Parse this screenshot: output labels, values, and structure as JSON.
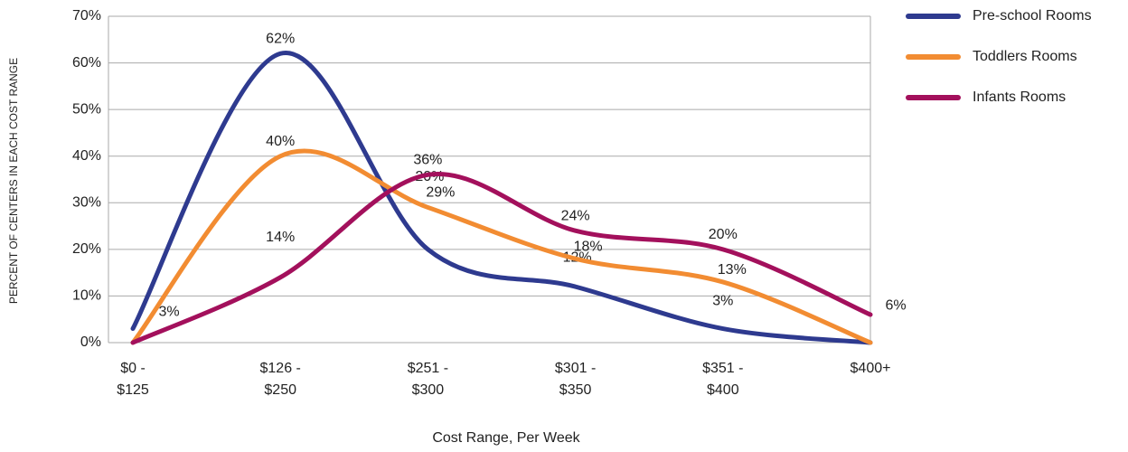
{
  "chart_data": {
    "type": "line",
    "x_label": "Cost Range, Per Week",
    "y_label": "PERCENT OF CENTERS IN EACH COST RANGE",
    "categories": [
      "$0 - $125",
      "$126 - $250",
      "$251 - $300",
      "$301 - $350",
      "$351 - $400",
      "$400+"
    ],
    "series": [
      {
        "name": "Pre-school Rooms",
        "color": "#2e3a8f",
        "values": [
          3,
          62,
          20,
          12,
          3,
          0
        ],
        "value_labels": [
          "3%",
          "62%",
          "20%",
          "12%",
          "3%",
          null
        ]
      },
      {
        "name": "Toddlers Rooms",
        "color": "#f28c32",
        "values": [
          0,
          40,
          29,
          18,
          13,
          0
        ],
        "value_labels": [
          null,
          "40%",
          "29%",
          "18%",
          "13%",
          null
        ]
      },
      {
        "name": "Infants Rooms",
        "color": "#a3105c",
        "values": [
          0,
          14,
          36,
          24,
          20,
          6
        ],
        "value_labels": [
          null,
          "14%",
          "36%",
          "24%",
          "20%",
          "6%"
        ]
      }
    ],
    "ylim": [
      0,
      70
    ],
    "yticks": [
      {
        "value": 0,
        "label": "0%"
      },
      {
        "value": 10,
        "label": "10%"
      },
      {
        "value": 20,
        "label": "20%"
      },
      {
        "value": 30,
        "label": "30%"
      },
      {
        "value": 40,
        "label": "40%"
      },
      {
        "value": 50,
        "label": "50%"
      },
      {
        "value": 60,
        "label": "60%"
      },
      {
        "value": 70,
        "label": "70%"
      }
    ],
    "grid": true,
    "legend": "top-right"
  }
}
